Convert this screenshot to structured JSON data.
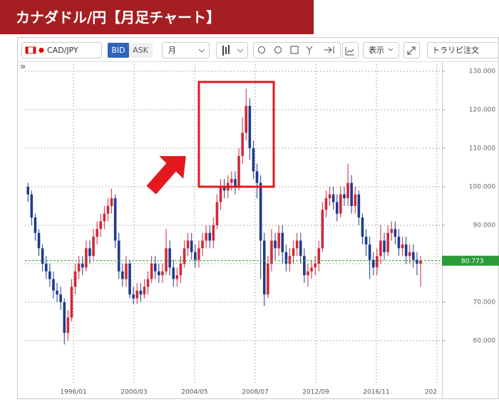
{
  "header": {
    "title": "カナダドル/円【月足チャート】"
  },
  "toolbar": {
    "symbol": "CAD/JPY",
    "bid": "BID",
    "ask": "ASK",
    "period": "月",
    "display": "表示",
    "order": "トラリピ注文"
  },
  "chart_data": {
    "type": "candlestick",
    "x": [
      "1992/10",
      "1993/01",
      "1993/04",
      "1993/07",
      "1993/10",
      "1994/01",
      "1994/04",
      "1994/07",
      "1994/10",
      "1995/01",
      "1995/04",
      "1995/07",
      "1995/10",
      "1996/01",
      "1996/04",
      "1996/07",
      "1996/10",
      "1997/01",
      "1997/04",
      "1997/07",
      "1997/10",
      "1998/01",
      "1998/04",
      "1998/07",
      "1998/10",
      "1999/01",
      "1999/04",
      "1999/07",
      "1999/10",
      "2000/01",
      "2000/04",
      "2000/07",
      "2000/10",
      "2001/01",
      "2001/04",
      "2001/07",
      "2001/10",
      "2002/01",
      "2002/04",
      "2002/07",
      "2002/10",
      "2003/01",
      "2003/04",
      "2003/07",
      "2003/10",
      "2004/01",
      "2004/04",
      "2004/07",
      "2004/10",
      "2005/01",
      "2005/04",
      "2005/07",
      "2005/10",
      "2006/01",
      "2006/04",
      "2006/07",
      "2006/10",
      "2007/01",
      "2007/04",
      "2007/07",
      "2007/10",
      "2008/01",
      "2008/04",
      "2008/07",
      "2008/10",
      "2009/01",
      "2009/04",
      "2009/07",
      "2009/10",
      "2010/01",
      "2010/04",
      "2010/07",
      "2010/10",
      "2011/01",
      "2011/04",
      "2011/07",
      "2011/10",
      "2012/01",
      "2012/04",
      "2012/07",
      "2012/10",
      "2013/01",
      "2013/04",
      "2013/07",
      "2013/10",
      "2014/01",
      "2014/04",
      "2014/07",
      "2014/10",
      "2015/01",
      "2015/04",
      "2015/07",
      "2015/10",
      "2016/01",
      "2016/04",
      "2016/07",
      "2016/10",
      "2017/01",
      "2017/04",
      "2017/07",
      "2017/10",
      "2018/01",
      "2018/04",
      "2018/07",
      "2018/10",
      "2019/01",
      "2019/04",
      "2019/07",
      "2019/10"
    ],
    "open": [
      100,
      98,
      92,
      88,
      84,
      80,
      78,
      76,
      73,
      72,
      70,
      62,
      66,
      74,
      78,
      80,
      79,
      84,
      82,
      87,
      89,
      91,
      93,
      95,
      97,
      86,
      78,
      76,
      80,
      72,
      71,
      73,
      72,
      74,
      76,
      80,
      78,
      77,
      78,
      84,
      79,
      76,
      77,
      80,
      84,
      86,
      83,
      81,
      84,
      86,
      88,
      86,
      90,
      96,
      100,
      99,
      101,
      102,
      100,
      108,
      114,
      121,
      110,
      104,
      101,
      86,
      72,
      80,
      86,
      84,
      88,
      83,
      80,
      82,
      84,
      86,
      82,
      77,
      78,
      79,
      80,
      84,
      94,
      97,
      98,
      96,
      93,
      98,
      97,
      101,
      95,
      98,
      92,
      87,
      85,
      81,
      79,
      82,
      86,
      83,
      88,
      89,
      87,
      84,
      85,
      82,
      83,
      81,
      80
    ],
    "high": [
      101,
      99,
      93,
      89,
      85,
      82,
      80,
      78,
      75,
      74,
      71,
      68,
      76,
      80,
      82,
      82,
      86,
      86,
      89,
      91,
      93,
      95,
      97,
      99.5,
      98,
      88,
      80,
      82,
      81,
      74,
      75,
      75,
      76,
      78,
      82,
      82,
      80,
      80,
      89,
      86,
      81,
      79,
      82,
      86,
      88,
      88,
      85,
      86,
      88,
      90,
      90,
      92,
      98,
      102,
      102,
      103,
      104,
      104,
      110,
      118,
      125.5,
      123,
      112,
      106,
      103,
      88,
      82,
      89,
      88,
      90,
      90,
      85,
      84,
      86,
      88,
      88,
      84,
      80,
      81,
      82,
      86,
      96,
      99,
      100,
      100,
      98,
      100,
      100,
      106,
      103,
      100,
      99,
      93,
      89,
      87,
      83,
      84,
      90,
      88,
      90,
      91,
      91,
      89,
      87,
      87,
      85,
      85,
      83,
      82
    ],
    "low": [
      96,
      90,
      86,
      82,
      78,
      76,
      74,
      71,
      70,
      68,
      59,
      60,
      65,
      72,
      76,
      77,
      78,
      80,
      81,
      85,
      87,
      89,
      91,
      93,
      84,
      76,
      74,
      74,
      71,
      69.5,
      69.5,
      70,
      71,
      72,
      75,
      76,
      75,
      75,
      77,
      77,
      74,
      74,
      75,
      79,
      82,
      81,
      79,
      79,
      82,
      84,
      84,
      84,
      89,
      94,
      97,
      97,
      99,
      98,
      99,
      106,
      112,
      107,
      102,
      97,
      76,
      69,
      71,
      78,
      81,
      82,
      80,
      78,
      78,
      80,
      82,
      80,
      75,
      74,
      76,
      77,
      78,
      83,
      92,
      95,
      94,
      91,
      92,
      95,
      95,
      93,
      93,
      90,
      85,
      82,
      76,
      77,
      77,
      80,
      81,
      82,
      86,
      85,
      82,
      82,
      80,
      80,
      79,
      77,
      74
    ],
    "close": [
      98,
      92,
      88,
      84,
      80,
      78,
      76,
      73,
      72,
      70,
      62,
      66,
      74,
      78,
      80,
      79,
      84,
      82,
      87,
      89,
      91,
      93,
      95,
      97,
      86,
      78,
      76,
      80,
      72,
      71,
      73,
      72,
      74,
      76,
      80,
      78,
      77,
      78,
      84,
      79,
      76,
      77,
      80,
      84,
      86,
      83,
      81,
      84,
      86,
      88,
      86,
      90,
      96,
      100,
      99,
      101,
      102,
      100,
      108,
      114,
      121,
      110,
      104,
      101,
      86,
      72,
      80,
      86,
      84,
      88,
      83,
      80,
      82,
      84,
      86,
      82,
      77,
      78,
      79,
      80,
      84,
      94,
      97,
      98,
      96,
      93,
      98,
      97,
      101,
      95,
      98,
      92,
      87,
      85,
      81,
      79,
      82,
      86,
      83,
      88,
      89,
      87,
      84,
      85,
      82,
      83,
      81,
      80,
      80.8
    ],
    "up_color": "#d0283a",
    "down_color": "#1d3b8c",
    "xlim": [
      "1992/09",
      "2021/01"
    ],
    "xticks": [
      "1996/01",
      "2000/03",
      "2004/05",
      "2008/07",
      "2012/09",
      "2016/11",
      {
        "value": "2021/01",
        "label": "202"
      }
    ],
    "ylim": [
      48.5,
      131.85
    ],
    "yticks": [
      {
        "value": 60,
        "label": "60.000"
      },
      {
        "value": 70,
        "label": "70.000"
      },
      {
        "value": 80,
        "label": "80.000"
      },
      {
        "value": 90,
        "label": "90.000"
      },
      {
        "value": 100,
        "label": "100.000"
      },
      {
        "value": 110,
        "label": "110.000"
      },
      {
        "value": 120,
        "label": "120.000"
      },
      {
        "value": 130,
        "label": "130.000"
      }
    ],
    "grid": true,
    "current_price": 80.773,
    "current_color": "#2e9a3a"
  }
}
